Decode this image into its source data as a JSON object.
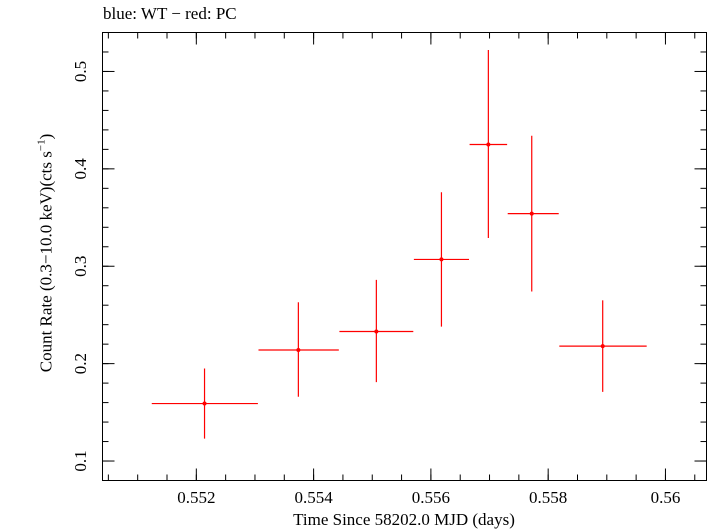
{
  "chart_data": {
    "type": "scatter",
    "title": "blue: WT − red: PC",
    "xlabel": "Time Since 58202.0 MJD (days)",
    "ylabel": {
      "prefix": "Count Rate (0.3−10.0 keV)(cts s",
      "superscript": "−1",
      "suffix": ")"
    },
    "xlim": [
      0.5504,
      0.5607
    ],
    "ylim": [
      0.08,
      0.54
    ],
    "x_ticks": [
      {
        "value": 0.552,
        "label": "0.552"
      },
      {
        "value": 0.554,
        "label": "0.554"
      },
      {
        "value": 0.556,
        "label": "0.556"
      },
      {
        "value": 0.558,
        "label": "0.558"
      },
      {
        "value": 0.56,
        "label": "0.56"
      }
    ],
    "x_minor_step": 0.0005,
    "y_ticks": [
      {
        "value": 0.1,
        "label": "0.1"
      },
      {
        "value": 0.2,
        "label": "0.2"
      },
      {
        "value": 0.3,
        "label": "0.3"
      },
      {
        "value": 0.4,
        "label": "0.4"
      },
      {
        "value": 0.5,
        "label": "0.5"
      }
    ],
    "y_minor_step": 0.02,
    "grid": false,
    "series": [
      {
        "name": "PC",
        "color": "#ff0000",
        "points": [
          {
            "x": 0.55214,
            "xmin": 0.55124,
            "xmax": 0.55305,
            "y": 0.159,
            "ylo": 0.123,
            "yhi": 0.195
          },
          {
            "x": 0.55374,
            "xmin": 0.55306,
            "xmax": 0.55443,
            "y": 0.214,
            "ylo": 0.166,
            "yhi": 0.263
          },
          {
            "x": 0.55507,
            "xmin": 0.55444,
            "xmax": 0.5557,
            "y": 0.233,
            "ylo": 0.181,
            "yhi": 0.286
          },
          {
            "x": 0.55618,
            "xmin": 0.55571,
            "xmax": 0.55665,
            "y": 0.307,
            "ylo": 0.238,
            "yhi": 0.376
          },
          {
            "x": 0.55698,
            "xmin": 0.55666,
            "xmax": 0.5573,
            "y": 0.425,
            "ylo": 0.329,
            "yhi": 0.522
          },
          {
            "x": 0.55772,
            "xmin": 0.55731,
            "xmax": 0.55818,
            "y": 0.354,
            "ylo": 0.274,
            "yhi": 0.434
          },
          {
            "x": 0.55893,
            "xmin": 0.55819,
            "xmax": 0.55968,
            "y": 0.218,
            "ylo": 0.171,
            "yhi": 0.265
          }
        ]
      }
    ]
  }
}
